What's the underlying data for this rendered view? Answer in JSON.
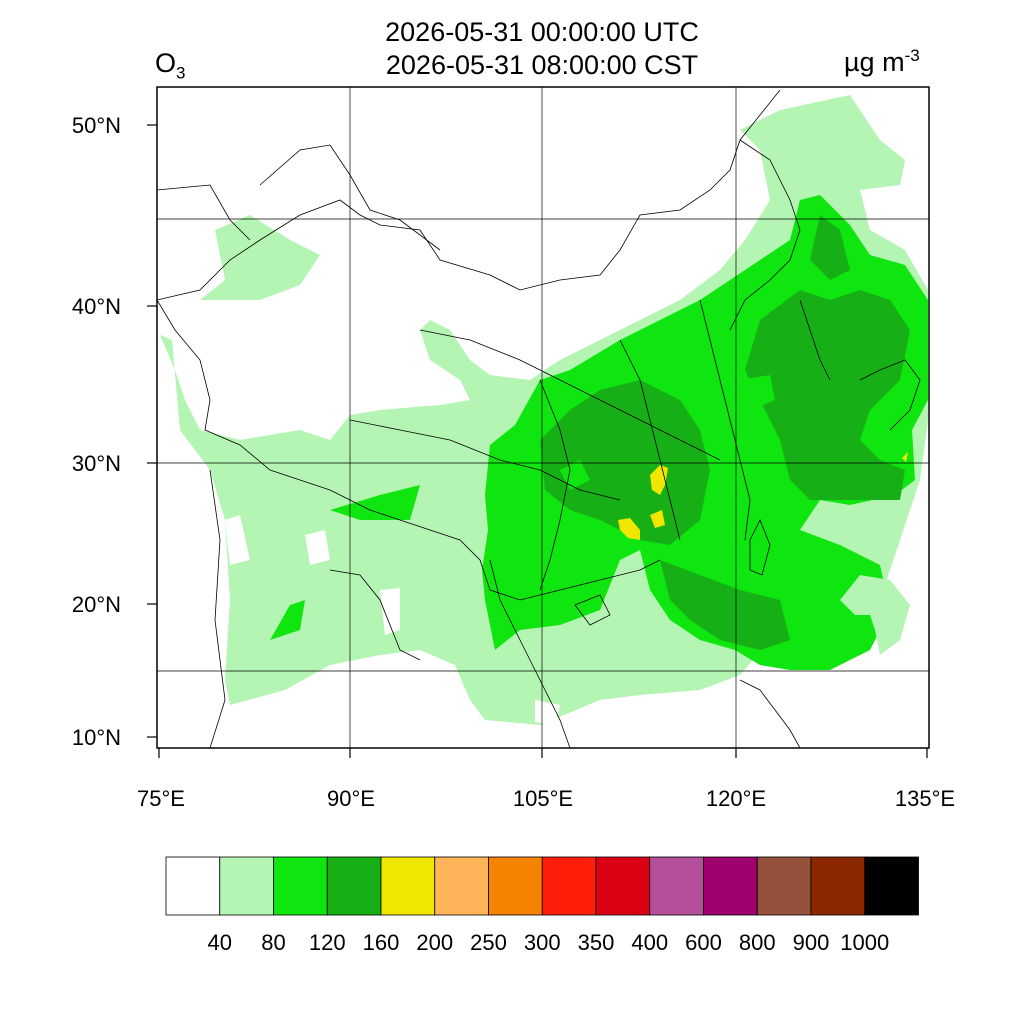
{
  "header": {
    "time_utc": "2026-05-31 00:00:00 UTC",
    "time_cst": "2026-05-31 08:00:00 CST",
    "variable": "O",
    "variable_sub": "3",
    "unit": "µg m",
    "unit_sup": "-3"
  },
  "axes": {
    "lat_labels": [
      "50°N",
      "40°N",
      "30°N",
      "20°N",
      "10°N"
    ],
    "lon_labels": [
      "75°E",
      "90°E",
      "105°E",
      "120°E",
      "135°E"
    ]
  },
  "colorbar": {
    "colors": [
      "#ffffff",
      "#b4f5b4",
      "#0fe60f",
      "#16b016",
      "#f0e600",
      "#ffb45a",
      "#f58200",
      "#ff1e0a",
      "#dc0014",
      "#b4509b",
      "#a0006e",
      "#96503c",
      "#8c2800",
      "#000000"
    ],
    "labels": [
      "40",
      "80",
      "120",
      "160",
      "200",
      "250",
      "300",
      "350",
      "400",
      "600",
      "800",
      "900",
      "1000"
    ]
  },
  "colors": {
    "light_green": "#b4f5b4",
    "green": "#0fe60f",
    "dark_green": "#16b016",
    "yellow": "#f0e600",
    "orange_light": "#ffb45a"
  }
}
